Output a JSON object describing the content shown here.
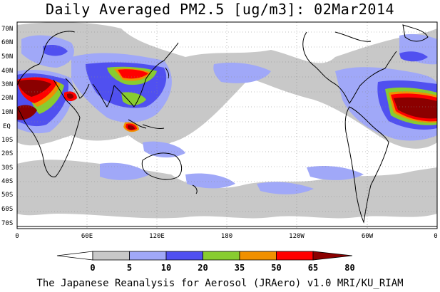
{
  "title": "Daily Averaged PM2.5 [ug/m3]: 02Mar2014",
  "footer": "The Japanese Reanalysis for Aerosol (JRAero) v1.0 MRI/KU_RIAM",
  "map": {
    "lat_labels": [
      "70N",
      "60N",
      "50N",
      "40N",
      "30N",
      "20N",
      "10N",
      "EQ",
      "10S",
      "20S",
      "30S",
      "40S",
      "50S",
      "60S",
      "70S"
    ],
    "lon_labels": [
      "0",
      "60E",
      "120E",
      "180",
      "120W",
      "60W",
      "0"
    ]
  },
  "colorbar": {
    "ticks": [
      "0",
      "5",
      "10",
      "20",
      "35",
      "50",
      "65",
      "80"
    ],
    "colors": [
      "#ffffff",
      "#c8c8c8",
      "#a0a8f8",
      "#5050f0",
      "#88cc30",
      "#f09000",
      "#ff0000",
      "#8b0000"
    ]
  }
}
